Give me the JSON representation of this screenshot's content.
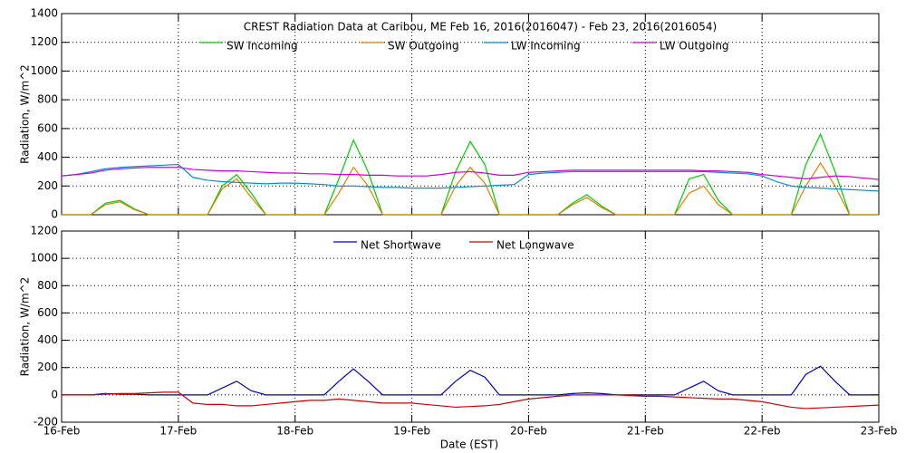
{
  "chart_data": [
    {
      "type": "line",
      "title": "CREST Radiation Data at Caribou, ME   Feb 16, 2016(2016047) - Feb 23, 2016(2016054)",
      "y_label": "Radiation, W/m^2",
      "xlim": [
        16,
        23
      ],
      "ylim": [
        0,
        1400
      ],
      "yticks": [
        0,
        200,
        400,
        600,
        800,
        1000,
        1200,
        1400
      ],
      "grid": true,
      "x": [
        16,
        16.125,
        16.25,
        16.375,
        16.5,
        16.625,
        16.75,
        16.875,
        17,
        17.125,
        17.25,
        17.375,
        17.5,
        17.625,
        17.75,
        17.875,
        18,
        18.125,
        18.25,
        18.375,
        18.5,
        18.625,
        18.75,
        18.875,
        19,
        19.125,
        19.25,
        19.375,
        19.5,
        19.625,
        19.75,
        19.875,
        20,
        20.125,
        20.25,
        20.375,
        20.5,
        20.625,
        20.75,
        20.875,
        21,
        21.125,
        21.25,
        21.375,
        21.5,
        21.625,
        21.75,
        21.875,
        22,
        22.125,
        22.25,
        22.375,
        22.5,
        22.625,
        22.75,
        22.875,
        23
      ],
      "series": [
        {
          "name": "SW Incoming",
          "color": "#00cc00",
          "values": [
            0,
            0,
            0,
            80,
            100,
            40,
            0,
            0,
            0,
            0,
            0,
            200,
            280,
            150,
            0,
            0,
            0,
            0,
            0,
            250,
            520,
            300,
            0,
            0,
            0,
            0,
            0,
            300,
            510,
            350,
            0,
            0,
            0,
            0,
            0,
            80,
            140,
            60,
            0,
            0,
            0,
            0,
            0,
            250,
            280,
            100,
            0,
            0,
            0,
            0,
            0,
            350,
            560,
            300,
            0,
            0,
            0
          ]
        },
        {
          "name": "SW Outgoing",
          "color": "#e08000",
          "values": [
            0,
            0,
            0,
            70,
            90,
            35,
            0,
            0,
            0,
            0,
            0,
            180,
            250,
            120,
            0,
            0,
            0,
            0,
            0,
            150,
            330,
            200,
            0,
            0,
            0,
            0,
            0,
            200,
            330,
            220,
            0,
            0,
            0,
            0,
            0,
            70,
            120,
            50,
            0,
            0,
            0,
            0,
            0,
            150,
            200,
            70,
            0,
            0,
            0,
            0,
            0,
            200,
            360,
            200,
            0,
            0,
            0
          ]
        },
        {
          "name": "LW Incoming",
          "color": "#0090d0",
          "values": [
            270,
            280,
            300,
            320,
            330,
            335,
            340,
            345,
            350,
            260,
            240,
            230,
            225,
            220,
            215,
            220,
            220,
            215,
            210,
            200,
            200,
            195,
            190,
            190,
            185,
            185,
            185,
            190,
            195,
            200,
            205,
            210,
            280,
            290,
            295,
            300,
            300,
            300,
            300,
            300,
            300,
            300,
            300,
            300,
            300,
            295,
            290,
            285,
            270,
            230,
            200,
            190,
            185,
            180,
            175,
            170,
            165
          ]
        },
        {
          "name": "LW Outgoing",
          "color": "#d000d0",
          "values": [
            270,
            280,
            290,
            310,
            320,
            325,
            330,
            330,
            330,
            315,
            310,
            305,
            305,
            300,
            295,
            290,
            290,
            285,
            285,
            280,
            280,
            275,
            275,
            270,
            270,
            270,
            280,
            295,
            300,
            290,
            275,
            275,
            295,
            300,
            305,
            310,
            310,
            310,
            310,
            310,
            310,
            310,
            310,
            310,
            305,
            305,
            300,
            295,
            280,
            270,
            260,
            250,
            260,
            270,
            265,
            255,
            245
          ]
        }
      ]
    },
    {
      "type": "line",
      "y_label": "Radiation, W/m^2",
      "x_label": "Date (EST)",
      "xlim": [
        16,
        23
      ],
      "xticks": [
        {
          "value": 16,
          "label": "16-Feb"
        },
        {
          "value": 17,
          "label": "17-Feb"
        },
        {
          "value": 18,
          "label": "18-Feb"
        },
        {
          "value": 19,
          "label": "19-Feb"
        },
        {
          "value": 20,
          "label": "20-Feb"
        },
        {
          "value": 21,
          "label": "21-Feb"
        },
        {
          "value": 22,
          "label": "22-Feb"
        },
        {
          "value": 23,
          "label": "23-Feb"
        }
      ],
      "ylim": [
        -200,
        1200
      ],
      "yticks": [
        -200,
        0,
        200,
        400,
        600,
        800,
        1000,
        1200
      ],
      "grid": true,
      "x": [
        16,
        16.125,
        16.25,
        16.375,
        16.5,
        16.625,
        16.75,
        16.875,
        17,
        17.125,
        17.25,
        17.375,
        17.5,
        17.625,
        17.75,
        17.875,
        18,
        18.125,
        18.25,
        18.375,
        18.5,
        18.625,
        18.75,
        18.875,
        19,
        19.125,
        19.25,
        19.375,
        19.5,
        19.625,
        19.75,
        19.875,
        20,
        20.125,
        20.25,
        20.375,
        20.5,
        20.625,
        20.75,
        20.875,
        21,
        21.125,
        21.25,
        21.375,
        21.5,
        21.625,
        21.75,
        21.875,
        22,
        22.125,
        22.25,
        22.375,
        22.5,
        22.625,
        22.75,
        22.875,
        23
      ],
      "series": [
        {
          "name": "Net Shortwave",
          "color": "#0000cc",
          "values": [
            0,
            0,
            0,
            10,
            5,
            5,
            0,
            0,
            0,
            0,
            0,
            50,
            100,
            30,
            0,
            0,
            0,
            0,
            0,
            100,
            190,
            100,
            0,
            0,
            0,
            0,
            0,
            100,
            180,
            130,
            0,
            0,
            0,
            0,
            0,
            10,
            15,
            10,
            0,
            0,
            0,
            0,
            0,
            50,
            100,
            30,
            0,
            0,
            0,
            0,
            0,
            150,
            210,
            100,
            0,
            0,
            0
          ]
        },
        {
          "name": "Net Longwave",
          "color": "#cc0000",
          "values": [
            0,
            0,
            0,
            5,
            10,
            10,
            15,
            20,
            20,
            -60,
            -70,
            -70,
            -80,
            -80,
            -70,
            -60,
            -50,
            -40,
            -40,
            -30,
            -40,
            -50,
            -60,
            -60,
            -60,
            -70,
            -80,
            -90,
            -85,
            -80,
            -70,
            -50,
            -30,
            -20,
            -10,
            0,
            0,
            0,
            0,
            -5,
            -10,
            -10,
            -15,
            -20,
            -25,
            -30,
            -30,
            -40,
            -50,
            -70,
            -90,
            -100,
            -95,
            -90,
            -85,
            -80,
            -75
          ]
        }
      ]
    }
  ]
}
